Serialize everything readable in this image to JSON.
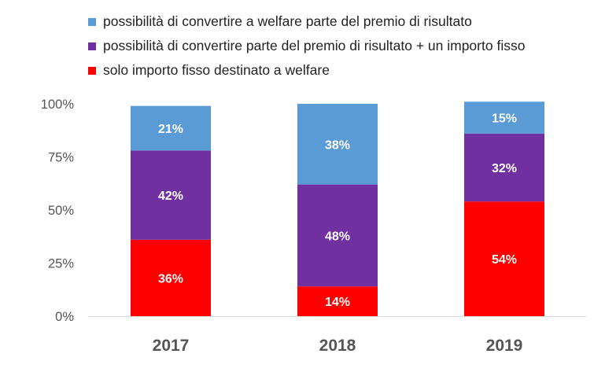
{
  "chart_data": {
    "type": "bar",
    "stacked": true,
    "categories": [
      "2017",
      "2018",
      "2019"
    ],
    "series": [
      {
        "name": "solo importo fisso destinato a welfare",
        "color": "#ff0000",
        "values": [
          36,
          14,
          54
        ],
        "labels": [
          "36%",
          "14%",
          "54%"
        ]
      },
      {
        "name": "possibilità di convertire parte del premio di risultato + un importo fisso",
        "color": "#7030a0",
        "values": [
          42,
          48,
          32
        ],
        "labels": [
          "42%",
          "48%",
          "32%"
        ]
      },
      {
        "name": "possibilità di convertire a welfare parte del premio di risultato",
        "color": "#5b9bd5",
        "values": [
          21,
          38,
          15
        ],
        "labels": [
          "21%",
          "38%",
          "15%"
        ]
      }
    ],
    "legend_order": [
      2,
      1,
      0
    ],
    "yticks": [
      0,
      25,
      50,
      75,
      100
    ],
    "ytick_labels": [
      "0%",
      "25%",
      "50%",
      "75%",
      "100%"
    ],
    "ylim": [
      0,
      100
    ],
    "grid": false,
    "legend_position": "top-left"
  }
}
